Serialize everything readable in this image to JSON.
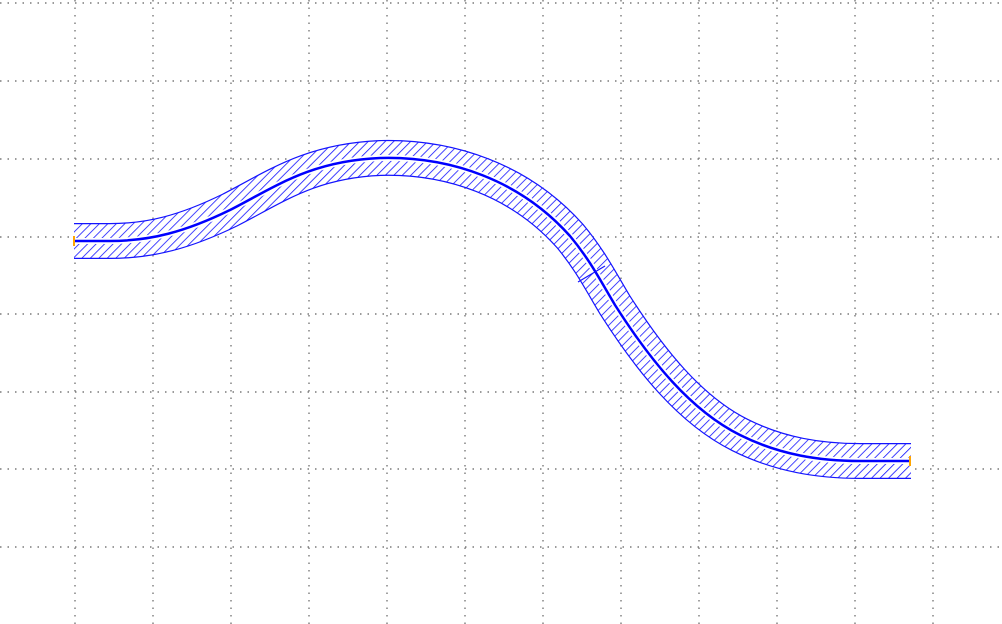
{
  "canvas": {
    "background_color": "#ffffff",
    "grid_color": "#7a7a7a",
    "grid_style": "dotted",
    "grid_visible": true
  },
  "waveguide": {
    "outline_color": "#1414ff",
    "hatch_color": "#1414ff",
    "centerline_color": "#0000ff",
    "port_marker_color": "#ffa500",
    "fill_pattern": "diagonal-hatch",
    "segments": [
      {
        "name": "left-straight",
        "shape": "straight"
      },
      {
        "name": "s-bend-up",
        "shape": "bend"
      },
      {
        "name": "s-bend-down",
        "shape": "bend"
      },
      {
        "name": "right-straight",
        "shape": "straight"
      }
    ],
    "ports": [
      "left-port",
      "right-port"
    ]
  }
}
